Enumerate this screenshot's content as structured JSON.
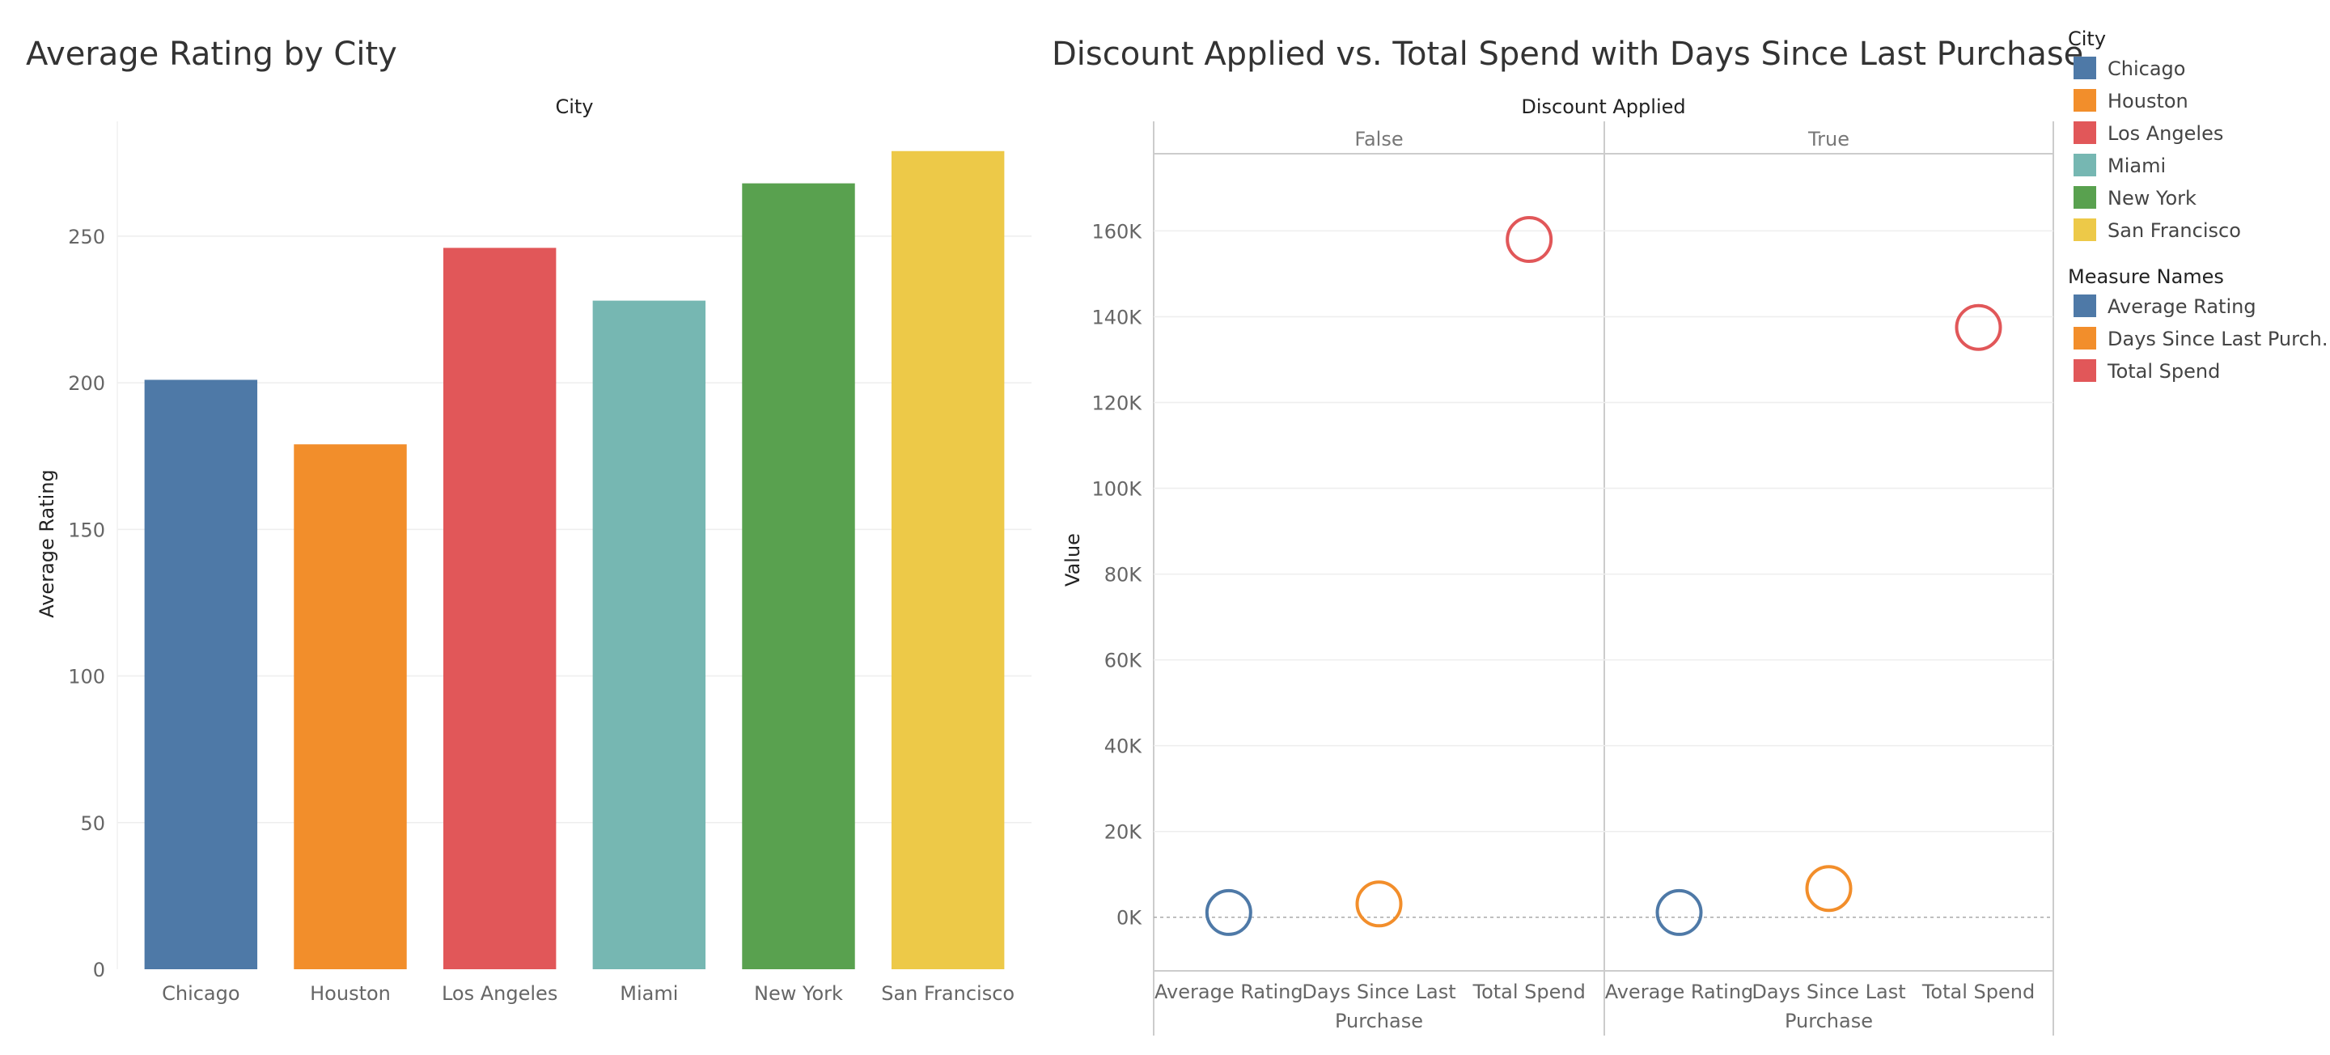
{
  "chart_data": [
    {
      "type": "bar",
      "title": "Average Rating by City",
      "header": "City",
      "ylabel": "Average Rating",
      "ylim": [
        0,
        285
      ],
      "yticks": [
        0,
        50,
        100,
        150,
        200,
        250
      ],
      "categories": [
        "Chicago",
        "Houston",
        "Los Angeles",
        "Miami",
        "New York",
        "San Francisco"
      ],
      "values": [
        201,
        179,
        246,
        228,
        268,
        279
      ],
      "colors": [
        "#4e79a7",
        "#f28e2b",
        "#e15759",
        "#76b7b2",
        "#59a14f",
        "#edc948"
      ]
    },
    {
      "type": "scatter",
      "title": "Discount Applied vs. Total Spend with Days Since Last Purchase",
      "header": "Discount Applied",
      "ylabel": "Value",
      "ylim": [
        -12500,
        178000
      ],
      "yticks": [
        0,
        20000,
        40000,
        60000,
        80000,
        100000,
        120000,
        140000,
        160000
      ],
      "ytick_labels": [
        "0K",
        "20K",
        "40K",
        "60K",
        "80K",
        "100K",
        "120K",
        "140K",
        "160K"
      ],
      "measures": [
        "Average Rating",
        "Days Since Last Purchase",
        "Total Spend"
      ],
      "measure_labels": [
        [
          "Average Rating"
        ],
        [
          "Days Since Last",
          "Purchase"
        ],
        [
          "Total Spend"
        ]
      ],
      "facets": [
        {
          "label": "False",
          "values": [
            1100,
            3100,
            158000
          ]
        },
        {
          "label": "True",
          "values": [
            1100,
            6700,
            137500
          ]
        }
      ],
      "colors": [
        "#4e79a7",
        "#f28e2b",
        "#e15759"
      ]
    }
  ],
  "legend": {
    "city_title": "City",
    "cities": [
      {
        "label": "Chicago",
        "color": "#4e79a7"
      },
      {
        "label": "Houston",
        "color": "#f28e2b"
      },
      {
        "label": "Los Angeles",
        "color": "#e15759"
      },
      {
        "label": "Miami",
        "color": "#76b7b2"
      },
      {
        "label": "New York",
        "color": "#59a14f"
      },
      {
        "label": "San Francisco",
        "color": "#edc948"
      }
    ],
    "measure_title": "Measure Names",
    "measures": [
      {
        "label": "Average Rating",
        "color": "#4e79a7"
      },
      {
        "label": "Days Since Last Purch..",
        "color": "#f28e2b"
      },
      {
        "label": "Total Spend",
        "color": "#e15759"
      }
    ]
  }
}
